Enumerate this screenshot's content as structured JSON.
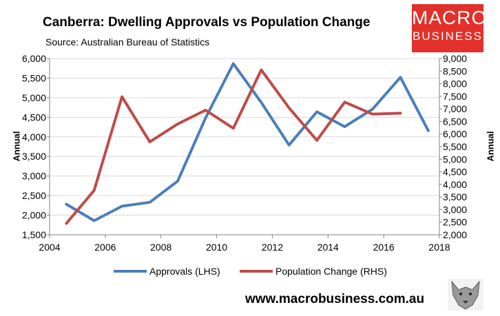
{
  "header": {
    "title": "Canberra: Dwelling Approvals vs Population Change",
    "source": "Source: Australian Bureau of Statistics",
    "logo_line1": "MACRO",
    "logo_line2": "BUSINESS",
    "website": "www.macrobusiness.com.au"
  },
  "colors": {
    "approvals": "#4a7ebb",
    "population": "#be4b48",
    "gridline": "#d9d9d9",
    "axis": "#808080",
    "logo": "#e3302a"
  },
  "chart_data": {
    "type": "line",
    "title": "Canberra: Dwelling Approvals vs Population Change",
    "xlabel": "",
    "ylabel_left": "Annual",
    "ylabel_right": "Annual",
    "xlim": [
      2004,
      2018
    ],
    "x_ticks": [
      "2004",
      "2006",
      "2008",
      "2010",
      "2012",
      "2014",
      "2016",
      "2018"
    ],
    "ylim_left": [
      1500,
      6000
    ],
    "y_ticks_left": [
      "1,500",
      "2,000",
      "2,500",
      "3,000",
      "3,500",
      "4,000",
      "4,500",
      "5,000",
      "5,500",
      "6,000"
    ],
    "ylim_right": [
      2000,
      9000
    ],
    "y_ticks_right": [
      "2,000",
      "2,500",
      "3,000",
      "3,500",
      "4,000",
      "4,500",
      "5,000",
      "5,500",
      "6,000",
      "6,500",
      "7,000",
      "7,500",
      "8,000",
      "8,500",
      "9,000"
    ],
    "grid": "horizontal",
    "legend_position": "bottom",
    "series": [
      {
        "name": "Approvals (LHS)",
        "axis": "left",
        "x": [
          2004.6,
          2005.6,
          2006.6,
          2007.6,
          2008.6,
          2009.6,
          2010.6,
          2011.6,
          2012.6,
          2013.6,
          2014.6,
          2015.6,
          2016.6,
          2017.6
        ],
        "values": [
          2280,
          1860,
          2230,
          2330,
          2870,
          4480,
          5870,
          4880,
          3790,
          4640,
          4260,
          4710,
          5520,
          4160
        ]
      },
      {
        "name": "Population Change (RHS)",
        "axis": "right",
        "x": [
          2004.6,
          2005.6,
          2006.6,
          2007.6,
          2008.6,
          2009.6,
          2010.6,
          2011.6,
          2012.6,
          2013.6,
          2014.6,
          2015.6,
          2016.6
        ],
        "values": [
          2450,
          3760,
          7480,
          5690,
          6400,
          6950,
          6230,
          8550,
          7040,
          5750,
          7270,
          6790,
          6830
        ]
      }
    ]
  }
}
